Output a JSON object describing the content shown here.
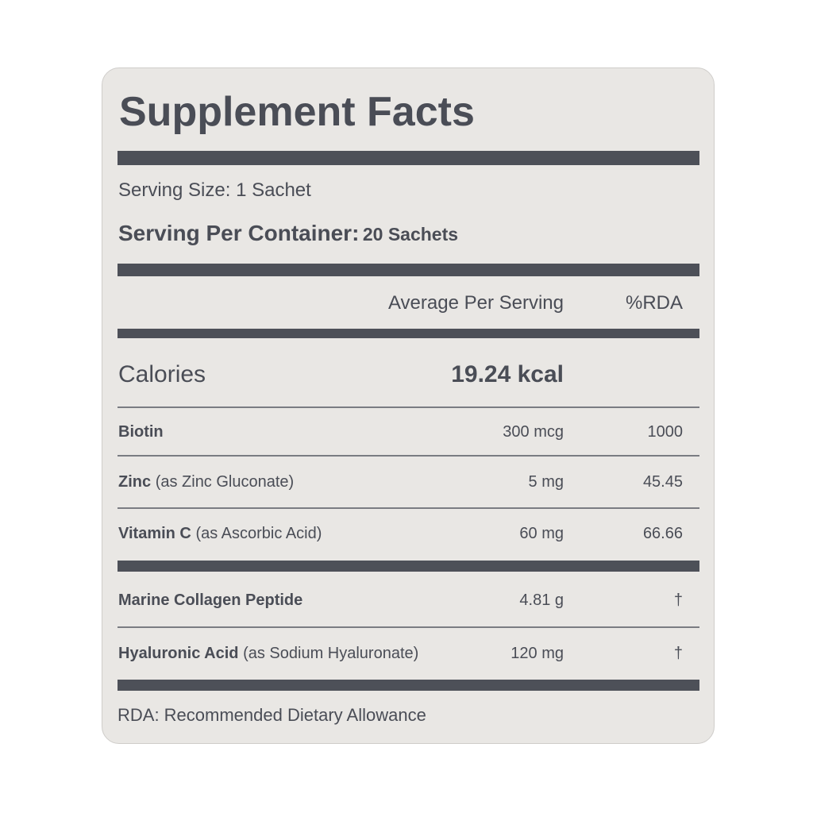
{
  "header": {
    "title": "Supplement Facts",
    "serving_size": "Serving Size: 1 Sachet",
    "servings_per_container": {
      "label": "Serving Per Container:",
      "value": "20 Sachets"
    }
  },
  "table": {
    "columns": [
      "Average Per Serving",
      "%RDA"
    ],
    "calories": {
      "label": "Calories",
      "amount": "19.24 kcal"
    },
    "rows": [
      {
        "name": "Biotin",
        "amount": "300 mcg",
        "rda": "1000"
      },
      {
        "name": "Zinc",
        "note": "(as Zinc Gluconate)",
        "amount": "5 mg",
        "rda": "45.45"
      },
      {
        "name": "Vitamin C",
        "note": "(as Ascorbic Acid)",
        "amount": "60 mg",
        "rda": "66.66"
      },
      {
        "name": "Marine Collagen Peptide",
        "amount": "4.81 g",
        "rda": "†"
      },
      {
        "name": "Hyaluronic Acid",
        "note": "(as Sodium Hyaluronate)",
        "amount": "120 mg",
        "rda": "†"
      }
    ]
  },
  "footer": "RDA: Recommended Dietary Allowance"
}
